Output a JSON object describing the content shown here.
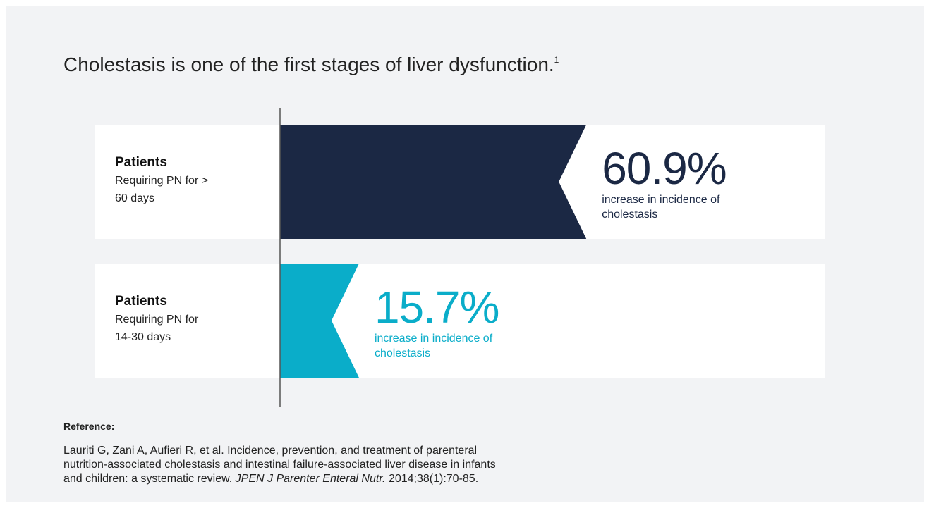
{
  "chart_data": {
    "type": "bar",
    "orientation": "horizontal",
    "title": "Cholestasis is one of the first stages of liver dysfunction.",
    "title_footnote": "1",
    "categories": [
      "Patients",
      "Patients"
    ],
    "category_details": [
      "Requiring PN for > 60 days",
      "Requiring PN for 14-30 days"
    ],
    "values": [
      60.9,
      15.7
    ],
    "value_labels": [
      "60.9%",
      "15.7%"
    ],
    "value_notes": [
      "increase in incidence of cholestasis",
      "increase in incidence of cholestasis"
    ],
    "colors": [
      "#1b2844",
      "#0aadc9"
    ]
  },
  "reference": {
    "heading": "Reference:",
    "text_before": "Lauriti G, Zani A, Aufieri R, et al. Incidence, prevention, and treatment of parenteral nutrition-associated cholestasis and intestinal failure-associated liver disease in infants and children: a systematic review. ",
    "journal": "JPEN J Parenter Enteral Nutr.",
    "text_after": " 2014;38(1):70-85."
  }
}
